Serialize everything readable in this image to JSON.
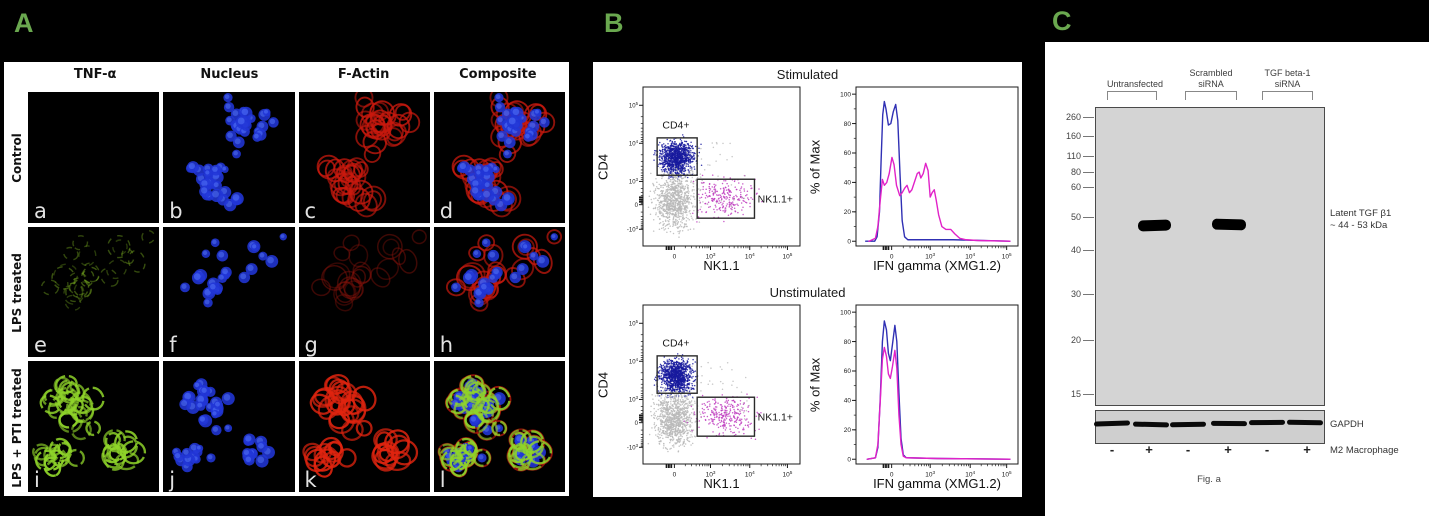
{
  "panels": {
    "a": {
      "label": "A",
      "col_headers": [
        "TNF-α",
        "Nucleus",
        "F-Actin",
        "Composite"
      ],
      "row_labels": [
        "Control",
        "LPS treated",
        "LPS + PTI treated"
      ],
      "cells": [
        {
          "letter": "a",
          "stain": "tnf-none"
        },
        {
          "letter": "b",
          "stain": "nucleus"
        },
        {
          "letter": "c",
          "stain": "actin"
        },
        {
          "letter": "d",
          "stain": "composite"
        },
        {
          "letter": "e",
          "stain": "tnf-dim"
        },
        {
          "letter": "f",
          "stain": "nucleus"
        },
        {
          "letter": "g",
          "stain": "actin-dim"
        },
        {
          "letter": "h",
          "stain": "composite"
        },
        {
          "letter": "i",
          "stain": "tnf-bright"
        },
        {
          "letter": "j",
          "stain": "nucleus"
        },
        {
          "letter": "k",
          "stain": "actin-bright"
        },
        {
          "letter": "l",
          "stain": "composite-tnf"
        }
      ]
    },
    "b": {
      "label": "B"
    },
    "c": {
      "label": "C",
      "lane_groups": [
        {
          "line1": "Untransfected",
          "line2": ""
        },
        {
          "line1": "Scrambled",
          "line2": "siRNA"
        },
        {
          "line1": "TGF beta-1",
          "line2": "siRNA"
        }
      ],
      "mw_markers": [
        "260",
        "160",
        "110",
        "80",
        "60",
        "50",
        "40",
        "30",
        "20",
        "15"
      ],
      "band_label": {
        "line1": "Latent TGF β1",
        "line2": "~ 44 - 53 kDa"
      },
      "gapdh_label": "GAPDH",
      "m2_marks": [
        "-",
        "+",
        "-",
        "+",
        "-",
        "+"
      ],
      "m2_label": "M2 Macrophage",
      "caption": "Fig. a"
    }
  },
  "chart_data": [
    {
      "type": "scatter",
      "title": "Stimulated",
      "xlabel": "NK1.1",
      "ylabel": "CD4",
      "x_ticks": [
        {
          "t": "0",
          "e": "",
          "f": 0.2
        },
        {
          "t": "10",
          "e": "3",
          "f": 0.43
        },
        {
          "t": "10",
          "e": "4",
          "f": 0.68
        },
        {
          "t": "10",
          "e": "5",
          "f": 0.92
        }
      ],
      "y_ticks": [
        {
          "t": "10",
          "e": "5",
          "f": 0.115
        },
        {
          "t": "10",
          "e": "4",
          "f": 0.354
        },
        {
          "t": "10",
          "e": "3",
          "f": 0.594
        },
        {
          "t": "0",
          "e": "",
          "f": 0.74
        },
        {
          "t": "-10",
          "e": "3",
          "f": 0.895
        }
      ],
      "gates": [
        {
          "label": "CD4+",
          "x1": 0.09,
          "y1": 0.32,
          "x2": 0.345,
          "y2": 0.555,
          "lx": 0.21,
          "ly": 0.26,
          "anchor": "middle"
        },
        {
          "label": "NK1.1+",
          "x1": 0.345,
          "y1": 0.58,
          "x2": 0.71,
          "y2": 0.825,
          "lx": 0.73,
          "ly": 0.725,
          "anchor": "start"
        }
      ],
      "populations": [
        {
          "name": "CD4+ cells",
          "color": "#171a9e",
          "n": 1050,
          "cx": 0.215,
          "cy": 0.448,
          "sx": 0.052,
          "sy": 0.05,
          "seed": 11
        },
        {
          "name": "double negative",
          "color": "#b9b9b9",
          "n": 900,
          "cx": 0.205,
          "cy": 0.715,
          "sx": 0.06,
          "sy": 0.085,
          "seed": 12
        },
        {
          "name": "NK1.1+ cells",
          "color": "#bf3ebf",
          "n": 250,
          "cx": 0.52,
          "cy": 0.7,
          "sx": 0.085,
          "sy": 0.055,
          "seed": 13
        },
        {
          "name": "sparse events",
          "color": "#bdbdbd",
          "n": 45,
          "cx": 0.42,
          "cy": 0.55,
          "sx": 0.26,
          "sy": 0.2,
          "seed": 14,
          "uniform": true
        }
      ]
    },
    {
      "type": "line",
      "title": "Stimulated",
      "xlabel": "IFN gamma (XMG1.2)",
      "ylabel": "% of Max",
      "ylim": [
        0,
        100
      ],
      "y_ticks": [
        100,
        80,
        60,
        40,
        20,
        0
      ],
      "x_ticks": [
        {
          "t": "0",
          "e": "",
          "f": 0.22
        },
        {
          "t": "10",
          "e": "3",
          "f": 0.458
        },
        {
          "t": "10",
          "e": "4",
          "f": 0.705
        },
        {
          "t": "10",
          "e": "5",
          "f": 0.93
        }
      ],
      "series": [
        {
          "name": "CD4+",
          "color": "#3030b4",
          "points": [
            [
              0.06,
              0
            ],
            [
              0.115,
              0
            ],
            [
              0.13,
              3
            ],
            [
              0.145,
              20
            ],
            [
              0.155,
              55
            ],
            [
              0.165,
              86
            ],
            [
              0.175,
              95
            ],
            [
              0.185,
              90
            ],
            [
              0.2,
              79
            ],
            [
              0.215,
              80
            ],
            [
              0.23,
              88
            ],
            [
              0.245,
              93
            ],
            [
              0.258,
              82
            ],
            [
              0.272,
              45
            ],
            [
              0.285,
              14
            ],
            [
              0.3,
              3
            ],
            [
              0.32,
              1
            ],
            [
              0.4,
              1
            ],
            [
              0.6,
              1
            ],
            [
              0.95,
              0
            ]
          ]
        },
        {
          "name": "NK1.1+",
          "color": "#e122c8",
          "points": [
            [
              0.08,
              0
            ],
            [
              0.12,
              2
            ],
            [
              0.135,
              10
            ],
            [
              0.15,
              28
            ],
            [
              0.163,
              42
            ],
            [
              0.175,
              38
            ],
            [
              0.19,
              40
            ],
            [
              0.205,
              46
            ],
            [
              0.222,
              57
            ],
            [
              0.235,
              52
            ],
            [
              0.25,
              38
            ],
            [
              0.27,
              31
            ],
            [
              0.285,
              33
            ],
            [
              0.3,
              36
            ],
            [
              0.315,
              38
            ],
            [
              0.33,
              33
            ],
            [
              0.345,
              35
            ],
            [
              0.36,
              40
            ],
            [
              0.378,
              46
            ],
            [
              0.39,
              47
            ],
            [
              0.4,
              43
            ],
            [
              0.415,
              46
            ],
            [
              0.43,
              53
            ],
            [
              0.445,
              48
            ],
            [
              0.458,
              30
            ],
            [
              0.47,
              33
            ],
            [
              0.483,
              35
            ],
            [
              0.495,
              28
            ],
            [
              0.51,
              18
            ],
            [
              0.53,
              10
            ],
            [
              0.555,
              8
            ],
            [
              0.585,
              8
            ],
            [
              0.61,
              5
            ],
            [
              0.64,
              2
            ],
            [
              0.68,
              1
            ],
            [
              0.75,
              0.5
            ],
            [
              0.95,
              0
            ]
          ]
        }
      ]
    },
    {
      "type": "scatter",
      "title": "Unstimulated",
      "xlabel": "NK1.1",
      "ylabel": "CD4",
      "x_ticks": [
        {
          "t": "0",
          "e": "",
          "f": 0.2
        },
        {
          "t": "10",
          "e": "3",
          "f": 0.43
        },
        {
          "t": "10",
          "e": "4",
          "f": 0.68
        },
        {
          "t": "10",
          "e": "5",
          "f": 0.92
        }
      ],
      "y_ticks": [
        {
          "t": "10",
          "e": "5",
          "f": 0.115
        },
        {
          "t": "10",
          "e": "4",
          "f": 0.354
        },
        {
          "t": "10",
          "e": "3",
          "f": 0.594
        },
        {
          "t": "0",
          "e": "",
          "f": 0.74
        },
        {
          "t": "-10",
          "e": "3",
          "f": 0.895
        }
      ],
      "gates": [
        {
          "label": "CD4+",
          "x1": 0.09,
          "y1": 0.32,
          "x2": 0.345,
          "y2": 0.555,
          "lx": 0.21,
          "ly": 0.26,
          "anchor": "middle"
        },
        {
          "label": "NK1.1+",
          "x1": 0.345,
          "y1": 0.58,
          "x2": 0.71,
          "y2": 0.825,
          "lx": 0.73,
          "ly": 0.725,
          "anchor": "start"
        }
      ],
      "populations": [
        {
          "name": "CD4+ cells",
          "color": "#171a9e",
          "n": 1050,
          "cx": 0.212,
          "cy": 0.45,
          "sx": 0.05,
          "sy": 0.052,
          "seed": 21
        },
        {
          "name": "double negative",
          "color": "#b9b9b9",
          "n": 900,
          "cx": 0.2,
          "cy": 0.72,
          "sx": 0.058,
          "sy": 0.082,
          "seed": 22
        },
        {
          "name": "NK1.1+ cells",
          "color": "#bf3ebf",
          "n": 280,
          "cx": 0.53,
          "cy": 0.7,
          "sx": 0.09,
          "sy": 0.058,
          "seed": 23
        },
        {
          "name": "sparse events",
          "color": "#bdbdbd",
          "n": 45,
          "cx": 0.42,
          "cy": 0.55,
          "sx": 0.26,
          "sy": 0.2,
          "seed": 24,
          "uniform": true
        }
      ]
    },
    {
      "type": "line",
      "title": "Unstimulated",
      "xlabel": "IFN gamma (XMG1.2)",
      "ylabel": "% of Max",
      "ylim": [
        0,
        100
      ],
      "y_ticks": [
        100,
        80,
        60,
        40,
        20,
        0
      ],
      "x_ticks": [
        {
          "t": "0",
          "e": "",
          "f": 0.22
        },
        {
          "t": "10",
          "e": "3",
          "f": 0.458
        },
        {
          "t": "10",
          "e": "4",
          "f": 0.705
        },
        {
          "t": "10",
          "e": "5",
          "f": 0.93
        }
      ],
      "series": [
        {
          "name": "CD4+",
          "color": "#3030b4",
          "points": [
            [
              0.07,
              0
            ],
            [
              0.12,
              1
            ],
            [
              0.135,
              8
            ],
            [
              0.15,
              42
            ],
            [
              0.163,
              80
            ],
            [
              0.175,
              94
            ],
            [
              0.188,
              88
            ],
            [
              0.2,
              72
            ],
            [
              0.212,
              67
            ],
            [
              0.225,
              78
            ],
            [
              0.24,
              91
            ],
            [
              0.252,
              80
            ],
            [
              0.265,
              45
            ],
            [
              0.278,
              14
            ],
            [
              0.292,
              3
            ],
            [
              0.31,
              1
            ],
            [
              0.5,
              0.5
            ],
            [
              0.95,
              0
            ]
          ]
        },
        {
          "name": "NK1.1+",
          "color": "#e122c8",
          "points": [
            [
              0.07,
              0
            ],
            [
              0.12,
              1
            ],
            [
              0.135,
              10
            ],
            [
              0.15,
              40
            ],
            [
              0.163,
              68
            ],
            [
              0.175,
              76
            ],
            [
              0.188,
              70
            ],
            [
              0.2,
              58
            ],
            [
              0.212,
              55
            ],
            [
              0.225,
              63
            ],
            [
              0.24,
              74
            ],
            [
              0.252,
              62
            ],
            [
              0.265,
              30
            ],
            [
              0.278,
              10
            ],
            [
              0.292,
              2
            ],
            [
              0.31,
              1
            ],
            [
              0.5,
              0.5
            ],
            [
              0.95,
              0
            ]
          ]
        }
      ]
    }
  ]
}
